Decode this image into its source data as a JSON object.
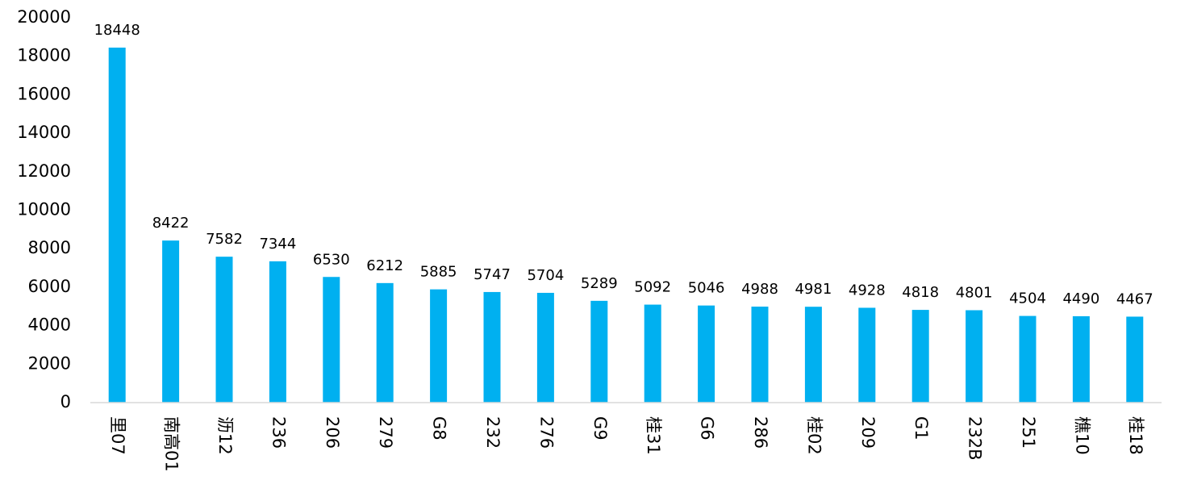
{
  "chart_data": {
    "type": "bar",
    "categories": [
      "里07",
      "南高01",
      "沥12",
      "236",
      "206",
      "279",
      "G8",
      "232",
      "276",
      "G9",
      "桂31",
      "G6",
      "286",
      "桂02",
      "209",
      "G1",
      "232B",
      "251",
      "樵10",
      "桂18"
    ],
    "values": [
      18448,
      8422,
      7582,
      7344,
      6530,
      6212,
      5885,
      5747,
      5704,
      5289,
      5092,
      5046,
      4988,
      4981,
      4928,
      4818,
      4801,
      4504,
      4490,
      4467
    ],
    "data_labels": [
      "18448",
      "8422",
      "7582",
      "7344",
      "6530",
      "6212",
      "5885",
      "5747",
      "5704",
      "5289",
      "5092",
      "5046",
      "4988",
      "4981",
      "4928",
      "4818",
      "4801",
      "4504",
      "4490",
      "4467"
    ],
    "y_ticks": [
      "0",
      "2000",
      "4000",
      "6000",
      "8000",
      "10000",
      "12000",
      "14000",
      "16000",
      "18000",
      "20000"
    ],
    "ylim": [
      0,
      20000
    ],
    "title": "",
    "xlabel": "",
    "ylabel": "",
    "grid": false,
    "legend": "none",
    "colors": {
      "bar": "#00B0F0",
      "axis": "#D9D9D9",
      "text": "#000000"
    }
  }
}
